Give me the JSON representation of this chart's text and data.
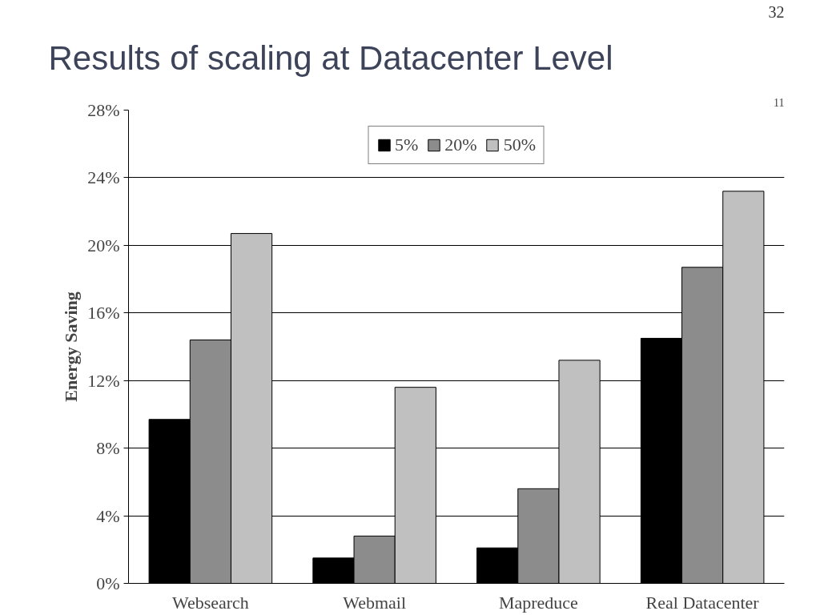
{
  "chart_data": {
    "type": "bar",
    "title": "Results of scaling at Datacenter Level",
    "ylabel": "Energy Saving",
    "annotations": [
      "32",
      "11"
    ],
    "categories": [
      "Websearch",
      "Webmail",
      "Mapreduce",
      "Real Datacenter"
    ],
    "series": [
      {
        "name": "5%",
        "color": "#000000",
        "values": [
          9.7,
          1.5,
          2.1,
          14.5
        ]
      },
      {
        "name": "20%",
        "color": "#8c8c8c",
        "values": [
          14.4,
          2.8,
          5.6,
          18.7
        ]
      },
      {
        "name": "50%",
        "color": "#c0c0c0",
        "values": [
          20.7,
          11.6,
          13.2,
          23.2
        ]
      }
    ],
    "ylim": [
      0,
      28
    ],
    "yticks": [
      {
        "value": 0,
        "label": "0%"
      },
      {
        "value": 4,
        "label": "4%"
      },
      {
        "value": 8,
        "label": "8%"
      },
      {
        "value": 12,
        "label": "12%"
      },
      {
        "value": 16,
        "label": "16%"
      },
      {
        "value": 20,
        "label": "20%"
      },
      {
        "value": 24,
        "label": "24%"
      },
      {
        "value": 28,
        "label": "28%"
      }
    ],
    "grid": "y",
    "legend": "top"
  }
}
